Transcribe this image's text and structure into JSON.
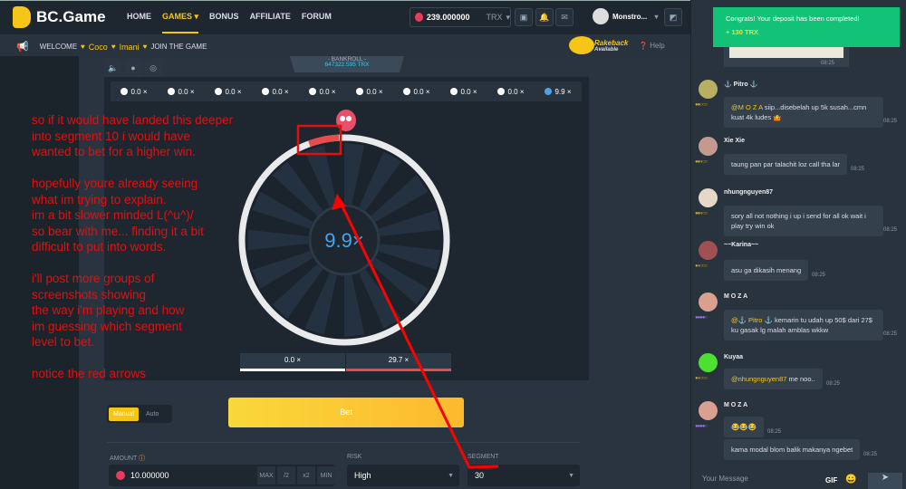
{
  "header": {
    "brand": "BC.Game",
    "nav": [
      "HOME",
      "GAMES",
      "BONUS",
      "AFFILIATE",
      "FORUM"
    ],
    "balance": "239.000000",
    "currency": "TRX",
    "username": "Monstro..."
  },
  "welcome": {
    "prefix": "WELCOME",
    "names": [
      "Coco",
      "Imani"
    ],
    "suffix": "JOIN THE GAME"
  },
  "promo": {
    "rakeback": "Rakeback",
    "available": "Available",
    "help": "Help"
  },
  "bankroll": {
    "label": "- BANKROLL -",
    "value": "647322.595 TRX"
  },
  "history": [
    "0.0 ×",
    "0.0 ×",
    "0.0 ×",
    "0.0 ×",
    "0.0 ×",
    "0.0 ×",
    "0.0 ×",
    "0.0 ×",
    "0.0 ×",
    "9.9 ×"
  ],
  "wheel": {
    "center_value": "9.9×",
    "results": [
      "0.0 ×",
      "29.7 ×"
    ],
    "accent": "#e84b4b",
    "center_color": "#4aa3e8"
  },
  "annotation": "so if it would have landed this deeper\ninto segment 10 i would have\nwanted to bet for a higher win.\n\nhopefully youre already seeing\nwhat im trying to explain.\nim a bit slower minded L(^u^)/\nso bear with me... finding it a bit\ndifficult to put into words.\n\ni'll post more groups of\nscreenshots showing\nthe way i'm playing and how\nim guessing which segment\nlevel to bet.\n\nnotice the red arrows",
  "controls": {
    "modes": [
      "Manual",
      "Auto"
    ],
    "bet": "Bet",
    "amount_label": "AMOUNT",
    "amount": "10.000000",
    "amount_buttons": [
      "MAX",
      "/2",
      "x2",
      "MIN"
    ],
    "risk_label": "RISK",
    "risk": "High",
    "segment_label": "SEGMENT",
    "segment": "30"
  },
  "toast": {
    "title": "Congrats! Your deposit has been completed!",
    "amount": "+ 130 TRX"
  },
  "chat": {
    "messages": [
      {
        "user": "⚓ Pitro ⚓",
        "mention": "@M O Z A",
        "text": " siip...disebelah up 5k susah...cmn kuat 4k ludes 🤷",
        "time": "08:25"
      },
      {
        "user": "Xie Xie",
        "text": "taung pan par talachit loz call tha lar",
        "time": "08:25"
      },
      {
        "user": "nhungnguyen87",
        "text": "sory all not nothing i up i send for all ok wait i play try win ok",
        "time": "08:25"
      },
      {
        "user": "~~Karina~~",
        "text": "asu ga dikasih menang",
        "time": "08:25"
      },
      {
        "user": "M O Z A",
        "mention": "@⚓ Pitro ⚓",
        "text": " kemarin tu udah up 50$ dari 27$ ku gasak lg malah amblas wkkw",
        "time": "08:25"
      },
      {
        "user": "Kuyaa",
        "mention": "@nhungnguyen87",
        "text": "  me noo..",
        "time": "08:25"
      },
      {
        "user": "M O Z A",
        "text": "😂😂😂",
        "time": "08:25"
      },
      {
        "text": "kama modal blom balik makanya ngebet",
        "time": "08:25"
      }
    ],
    "first_time": "08:25",
    "placeholder": "Your Message",
    "gif": "GIF"
  }
}
